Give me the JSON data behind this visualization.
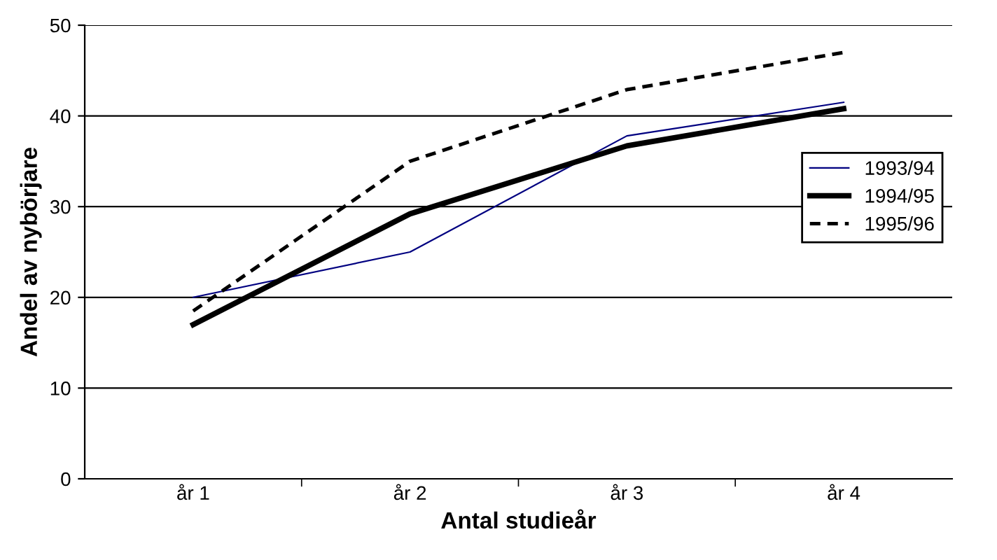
{
  "chart_data": {
    "type": "line",
    "xlabel": "Antal studieår",
    "ylabel": "Andel av nybörjare",
    "categories": [
      "år 1",
      "år 2",
      "år 3",
      "år 4"
    ],
    "series": [
      {
        "name": "1993/94",
        "color": "#000080",
        "values": [
          20,
          25,
          37.8,
          41.5
        ],
        "line_style": "solid"
      },
      {
        "name": "1994/95",
        "color": "#000000",
        "values": [
          17,
          29.2,
          36.7,
          40.8
        ],
        "line_style": "solid"
      },
      {
        "name": "1995/96",
        "color": "#000000",
        "values": [
          18.5,
          35,
          42.9,
          47
        ],
        "line_style": "dotted"
      }
    ],
    "ylim": [
      0,
      50
    ],
    "yticks": [
      0,
      10,
      20,
      30,
      40,
      50
    ],
    "grid": "y",
    "legend": "right",
    "marker": "none"
  }
}
